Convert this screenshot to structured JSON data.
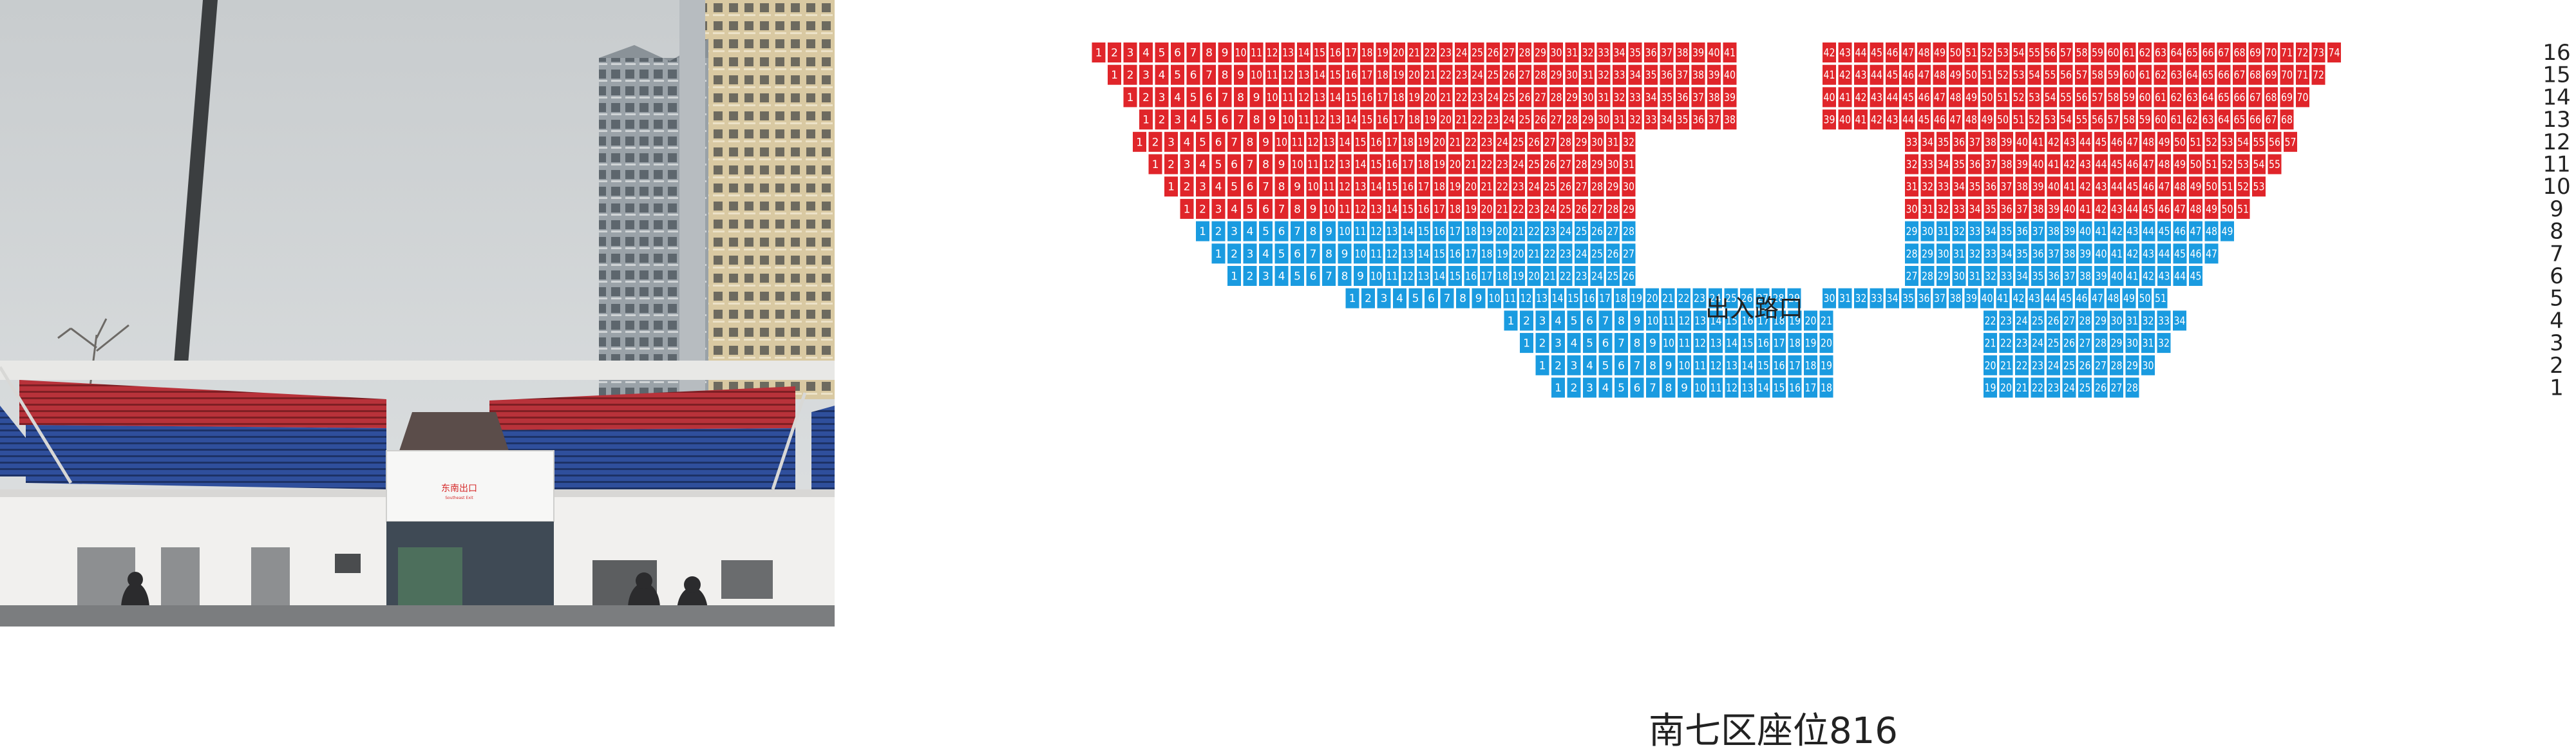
{
  "photo": {
    "exit_sign": "东南出口",
    "exit_sign_en": "Southeast Exit"
  },
  "entrance_label": "出入路口",
  "section_title": "南七区座位816",
  "colors": {
    "upper_rows": "#e0252a",
    "lower_rows": "#1a9be0",
    "seat_text": "#ffffff"
  },
  "seat_blocks": {
    "left": [
      {
        "row": 16,
        "from": 1,
        "to": 41,
        "color": "red"
      },
      {
        "row": 15,
        "from": 1,
        "to": 40,
        "color": "red"
      },
      {
        "row": 14,
        "from": 1,
        "to": 39,
        "color": "red"
      },
      {
        "row": 13,
        "from": 1,
        "to": 38,
        "color": "red"
      },
      {
        "row": 12,
        "from": 1,
        "to": 32,
        "color": "red"
      },
      {
        "row": 11,
        "from": 1,
        "to": 31,
        "color": "red"
      },
      {
        "row": 10,
        "from": 1,
        "to": 30,
        "color": "red"
      },
      {
        "row": 9,
        "from": 1,
        "to": 29,
        "color": "red"
      },
      {
        "row": 8,
        "from": 1,
        "to": 28,
        "color": "blue"
      },
      {
        "row": 7,
        "from": 1,
        "to": 27,
        "color": "blue"
      },
      {
        "row": 6,
        "from": 1,
        "to": 26,
        "color": "blue"
      },
      {
        "row": 5,
        "from": 1,
        "to": 29,
        "color": "blue"
      },
      {
        "row": 4,
        "from": 1,
        "to": 21,
        "color": "blue"
      },
      {
        "row": 3,
        "from": 1,
        "to": 20,
        "color": "blue"
      },
      {
        "row": 2,
        "from": 1,
        "to": 19,
        "color": "blue"
      },
      {
        "row": 1,
        "from": 1,
        "to": 18,
        "color": "blue"
      }
    ],
    "right": [
      {
        "row": 16,
        "from": 42,
        "to": 74,
        "color": "red"
      },
      {
        "row": 15,
        "from": 41,
        "to": 72,
        "color": "red"
      },
      {
        "row": 14,
        "from": 40,
        "to": 70,
        "color": "red"
      },
      {
        "row": 13,
        "from": 39,
        "to": 68,
        "color": "red"
      },
      {
        "row": 12,
        "from": 33,
        "to": 57,
        "color": "red"
      },
      {
        "row": 11,
        "from": 32,
        "to": 55,
        "color": "red"
      },
      {
        "row": 10,
        "from": 31,
        "to": 53,
        "color": "red"
      },
      {
        "row": 9,
        "from": 30,
        "to": 51,
        "color": "red"
      },
      {
        "row": 8,
        "from": 29,
        "to": 49,
        "color": "blue"
      },
      {
        "row": 7,
        "from": 28,
        "to": 47,
        "color": "blue"
      },
      {
        "row": 6,
        "from": 27,
        "to": 45,
        "color": "blue"
      },
      {
        "row": 5,
        "from": 30,
        "to": 51,
        "color": "blue"
      },
      {
        "row": 4,
        "from": 22,
        "to": 34,
        "color": "blue"
      },
      {
        "row": 3,
        "from": 21,
        "to": 32,
        "color": "blue"
      },
      {
        "row": 2,
        "from": 20,
        "to": 30,
        "color": "blue"
      },
      {
        "row": 1,
        "from": 19,
        "to": 28,
        "color": "blue"
      }
    ]
  }
}
